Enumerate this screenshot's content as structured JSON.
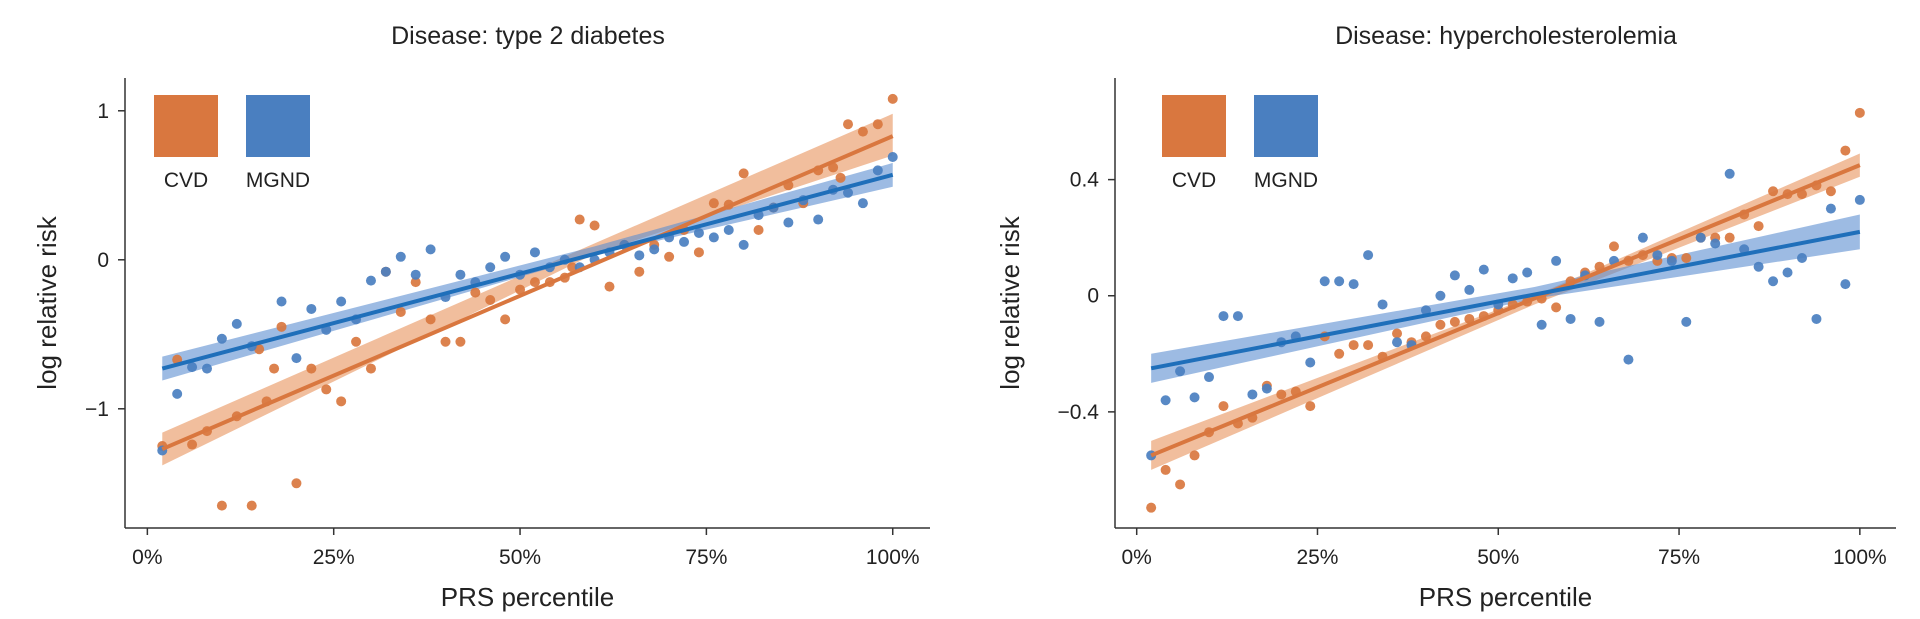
{
  "colors": {
    "cvd": "#d9773f",
    "cvd_band": "#e8935c",
    "mgnd": "#4a7fc0",
    "mgnd_line": "#1f6fba",
    "mgnd_band": "#5b8ed0",
    "axis": "#333333"
  },
  "chart_data": [
    {
      "type": "scatter",
      "title": "Disease: type 2 diabetes",
      "xlabel": "PRS percentile",
      "ylabel": "log relative risk",
      "xlim": [
        -3,
        105
      ],
      "ylim": [
        -1.8,
        1.22
      ],
      "xticks": [
        0,
        25,
        50,
        75,
        100
      ],
      "xtick_labels": [
        "0%",
        "25%",
        "50%",
        "75%",
        "100%"
      ],
      "yticks": [
        -1,
        0,
        1
      ],
      "ytick_labels": [
        "−1",
        "0",
        "1"
      ],
      "legend": {
        "position": "top-left",
        "entries": [
          "CVD",
          "MGND"
        ]
      },
      "series": [
        {
          "name": "CVD",
          "fit": {
            "x": [
              2,
              100
            ],
            "y": [
              -1.27,
              0.83
            ]
          },
          "band": {
            "x": [
              2,
              60,
              100
            ],
            "lower": [
              -1.38,
              0.04,
              0.7
            ],
            "upper": [
              -1.16,
              0.11,
              0.98
            ]
          },
          "points": [
            [
              2,
              -1.25
            ],
            [
              4,
              -0.67
            ],
            [
              6,
              -1.24
            ],
            [
              8,
              -1.15
            ],
            [
              10,
              -1.65
            ],
            [
              12,
              -1.05
            ],
            [
              14,
              -1.65
            ],
            [
              15,
              -0.6
            ],
            [
              16,
              -0.95
            ],
            [
              17,
              -0.73
            ],
            [
              18,
              -0.45
            ],
            [
              20,
              -1.5
            ],
            [
              22,
              -0.73
            ],
            [
              24,
              -0.87
            ],
            [
              26,
              -0.95
            ],
            [
              28,
              -0.55
            ],
            [
              30,
              -0.73
            ],
            [
              32,
              -0.08
            ],
            [
              34,
              -0.35
            ],
            [
              36,
              -0.15
            ],
            [
              38,
              -0.4
            ],
            [
              40,
              -0.55
            ],
            [
              42,
              -0.55
            ],
            [
              44,
              -0.22
            ],
            [
              46,
              -0.27
            ],
            [
              48,
              -0.4
            ],
            [
              50,
              -0.2
            ],
            [
              52,
              -0.15
            ],
            [
              54,
              -0.15
            ],
            [
              56,
              -0.12
            ],
            [
              57,
              -0.05
            ],
            [
              58,
              0.27
            ],
            [
              60,
              0.23
            ],
            [
              62,
              -0.18
            ],
            [
              64,
              0.1
            ],
            [
              66,
              -0.08
            ],
            [
              68,
              0.1
            ],
            [
              70,
              0.02
            ],
            [
              72,
              0.2
            ],
            [
              74,
              0.05
            ],
            [
              76,
              0.38
            ],
            [
              78,
              0.37
            ],
            [
              80,
              0.58
            ],
            [
              82,
              0.2
            ],
            [
              84,
              0.35
            ],
            [
              86,
              0.5
            ],
            [
              88,
              0.38
            ],
            [
              90,
              0.6
            ],
            [
              92,
              0.62
            ],
            [
              93,
              0.55
            ],
            [
              94,
              0.91
            ],
            [
              96,
              0.86
            ],
            [
              98,
              0.91
            ],
            [
              100,
              1.08
            ]
          ]
        },
        {
          "name": "MGND",
          "fit": {
            "x": [
              2,
              100
            ],
            "y": [
              -0.73,
              0.57
            ]
          },
          "band": {
            "x": [
              2,
              60,
              100
            ],
            "lower": [
              -0.81,
              0.03,
              0.49
            ],
            "upper": [
              -0.65,
              0.09,
              0.65
            ]
          },
          "points": [
            [
              2,
              -1.28
            ],
            [
              4,
              -0.9
            ],
            [
              6,
              -0.72
            ],
            [
              8,
              -0.73
            ],
            [
              10,
              -0.53
            ],
            [
              12,
              -0.43
            ],
            [
              14,
              -0.58
            ],
            [
              18,
              -0.28
            ],
            [
              20,
              -0.66
            ],
            [
              22,
              -0.33
            ],
            [
              24,
              -0.47
            ],
            [
              26,
              -0.28
            ],
            [
              28,
              -0.4
            ],
            [
              30,
              -0.14
            ],
            [
              32,
              -0.08
            ],
            [
              34,
              0.02
            ],
            [
              36,
              -0.1
            ],
            [
              38,
              0.07
            ],
            [
              40,
              -0.25
            ],
            [
              42,
              -0.1
            ],
            [
              44,
              -0.15
            ],
            [
              46,
              -0.05
            ],
            [
              48,
              0.02
            ],
            [
              50,
              -0.1
            ],
            [
              52,
              0.05
            ],
            [
              54,
              -0.05
            ],
            [
              56,
              0.0
            ],
            [
              58,
              -0.05
            ],
            [
              60,
              0.0
            ],
            [
              62,
              0.05
            ],
            [
              64,
              0.1
            ],
            [
              66,
              0.03
            ],
            [
              68,
              0.07
            ],
            [
              70,
              0.15
            ],
            [
              72,
              0.12
            ],
            [
              74,
              0.18
            ],
            [
              76,
              0.15
            ],
            [
              78,
              0.2
            ],
            [
              80,
              0.1
            ],
            [
              82,
              0.3
            ],
            [
              84,
              0.35
            ],
            [
              86,
              0.25
            ],
            [
              88,
              0.4
            ],
            [
              90,
              0.27
            ],
            [
              92,
              0.47
            ],
            [
              94,
              0.45
            ],
            [
              96,
              0.38
            ],
            [
              98,
              0.6
            ],
            [
              100,
              0.69
            ]
          ]
        }
      ]
    },
    {
      "type": "scatter",
      "title": "Disease: hypercholesterolemia",
      "xlabel": "PRS percentile",
      "ylabel": "log relative risk",
      "xlim": [
        -3,
        105
      ],
      "ylim": [
        -0.8,
        0.75
      ],
      "xticks": [
        0,
        25,
        50,
        75,
        100
      ],
      "xtick_labels": [
        "0%",
        "25%",
        "50%",
        "75%",
        "100%"
      ],
      "yticks": [
        -0.4,
        0,
        0.4
      ],
      "ytick_labels": [
        "−0.4",
        "0",
        "0.4"
      ],
      "legend": {
        "position": "top-left",
        "entries": [
          "CVD",
          "MGND"
        ]
      },
      "series": [
        {
          "name": "CVD",
          "fit": {
            "x": [
              2,
              100
            ],
            "y": [
              -0.55,
              0.45
            ]
          },
          "band": {
            "x": [
              2,
              55,
              100
            ],
            "lower": [
              -0.6,
              -0.03,
              0.41
            ],
            "upper": [
              -0.5,
              0.0,
              0.49
            ]
          },
          "points": [
            [
              2,
              -0.73
            ],
            [
              4,
              -0.6
            ],
            [
              6,
              -0.65
            ],
            [
              8,
              -0.55
            ],
            [
              10,
              -0.47
            ],
            [
              12,
              -0.38
            ],
            [
              14,
              -0.44
            ],
            [
              16,
              -0.42
            ],
            [
              18,
              -0.31
            ],
            [
              20,
              -0.34
            ],
            [
              22,
              -0.33
            ],
            [
              24,
              -0.38
            ],
            [
              26,
              -0.14
            ],
            [
              28,
              -0.2
            ],
            [
              30,
              -0.17
            ],
            [
              32,
              -0.17
            ],
            [
              34,
              -0.21
            ],
            [
              36,
              -0.13
            ],
            [
              38,
              -0.16
            ],
            [
              40,
              -0.14
            ],
            [
              42,
              -0.1
            ],
            [
              44,
              -0.09
            ],
            [
              46,
              -0.08
            ],
            [
              48,
              -0.07
            ],
            [
              50,
              -0.05
            ],
            [
              52,
              -0.03
            ],
            [
              54,
              -0.02
            ],
            [
              56,
              -0.01
            ],
            [
              58,
              -0.04
            ],
            [
              60,
              0.05
            ],
            [
              62,
              0.08
            ],
            [
              64,
              0.1
            ],
            [
              66,
              0.17
            ],
            [
              68,
              0.12
            ],
            [
              70,
              0.14
            ],
            [
              72,
              0.12
            ],
            [
              74,
              0.13
            ],
            [
              76,
              0.13
            ],
            [
              78,
              0.2
            ],
            [
              80,
              0.2
            ],
            [
              82,
              0.2
            ],
            [
              84,
              0.28
            ],
            [
              86,
              0.24
            ],
            [
              88,
              0.36
            ],
            [
              90,
              0.35
            ],
            [
              92,
              0.35
            ],
            [
              94,
              0.38
            ],
            [
              96,
              0.36
            ],
            [
              98,
              0.5
            ],
            [
              100,
              0.63
            ]
          ]
        },
        {
          "name": "MGND",
          "fit": {
            "x": [
              2,
              100
            ],
            "y": [
              -0.25,
              0.22
            ]
          },
          "band": {
            "x": [
              2,
              55,
              100
            ],
            "lower": [
              -0.3,
              -0.01,
              0.16
            ],
            "upper": [
              -0.2,
              0.03,
              0.28
            ]
          },
          "points": [
            [
              2,
              -0.55
            ],
            [
              4,
              -0.36
            ],
            [
              6,
              -0.26
            ],
            [
              8,
              -0.35
            ],
            [
              10,
              -0.28
            ],
            [
              12,
              -0.07
            ],
            [
              14,
              -0.07
            ],
            [
              16,
              -0.34
            ],
            [
              18,
              -0.32
            ],
            [
              20,
              -0.16
            ],
            [
              22,
              -0.14
            ],
            [
              24,
              -0.23
            ],
            [
              26,
              0.05
            ],
            [
              28,
              0.05
            ],
            [
              30,
              0.04
            ],
            [
              32,
              0.14
            ],
            [
              34,
              -0.03
            ],
            [
              36,
              -0.16
            ],
            [
              38,
              -0.17
            ],
            [
              40,
              -0.05
            ],
            [
              42,
              0.0
            ],
            [
              44,
              0.07
            ],
            [
              46,
              0.02
            ],
            [
              48,
              0.09
            ],
            [
              50,
              -0.03
            ],
            [
              52,
              0.06
            ],
            [
              54,
              0.08
            ],
            [
              56,
              -0.1
            ],
            [
              58,
              0.12
            ],
            [
              60,
              -0.08
            ],
            [
              62,
              0.07
            ],
            [
              64,
              -0.09
            ],
            [
              66,
              0.12
            ],
            [
              68,
              -0.22
            ],
            [
              70,
              0.2
            ],
            [
              72,
              0.14
            ],
            [
              74,
              0.12
            ],
            [
              76,
              -0.09
            ],
            [
              78,
              0.2
            ],
            [
              80,
              0.18
            ],
            [
              82,
              0.42
            ],
            [
              84,
              0.16
            ],
            [
              86,
              0.1
            ],
            [
              88,
              0.05
            ],
            [
              90,
              0.08
            ],
            [
              92,
              0.13
            ],
            [
              94,
              -0.08
            ],
            [
              96,
              0.3
            ],
            [
              98,
              0.04
            ],
            [
              100,
              0.33
            ]
          ]
        }
      ]
    }
  ]
}
